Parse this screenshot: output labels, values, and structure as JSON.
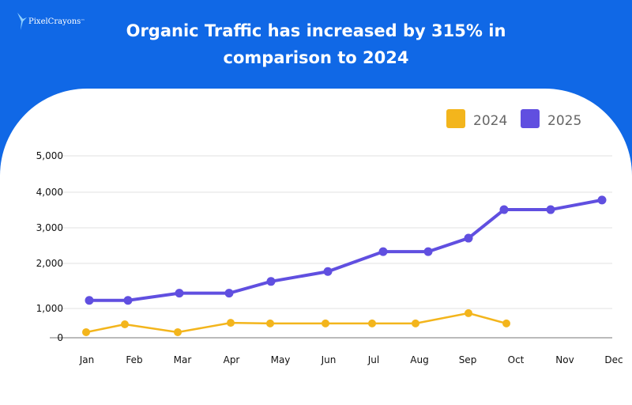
{
  "logo": {
    "text": "PixelCrayons",
    "trademark": "™"
  },
  "header": {
    "title_line1": "Organic Traffic has increased by 315% in",
    "title_line2": "comparison to 2024"
  },
  "colors": {
    "background": "#1068E6",
    "series_2024": "#F3B51C",
    "series_2025": "#604FE0"
  },
  "chart_data": {
    "type": "line",
    "categories": [
      "Jan",
      "Feb",
      "Mar",
      "Apr",
      "May",
      "Jun",
      "Jul",
      "Aug",
      "Sep",
      "Oct",
      "Nov",
      "Dec"
    ],
    "y_ticks": [
      "0",
      "1,000",
      "2,000",
      "3,000",
      "4,000",
      "5,000"
    ],
    "ylim": [
      0,
      5000
    ],
    "grid": true,
    "legend": "top-right",
    "series": [
      {
        "name": "2024",
        "values": [
          190,
          460,
          190,
          510,
          490,
          490,
          490,
          490,
          840,
          490,
          null,
          null
        ]
      },
      {
        "name": "2025",
        "values": [
          1180,
          1180,
          1340,
          1340,
          1600,
          1820,
          2330,
          2330,
          2710,
          3510,
          3510,
          3780
        ]
      }
    ]
  }
}
